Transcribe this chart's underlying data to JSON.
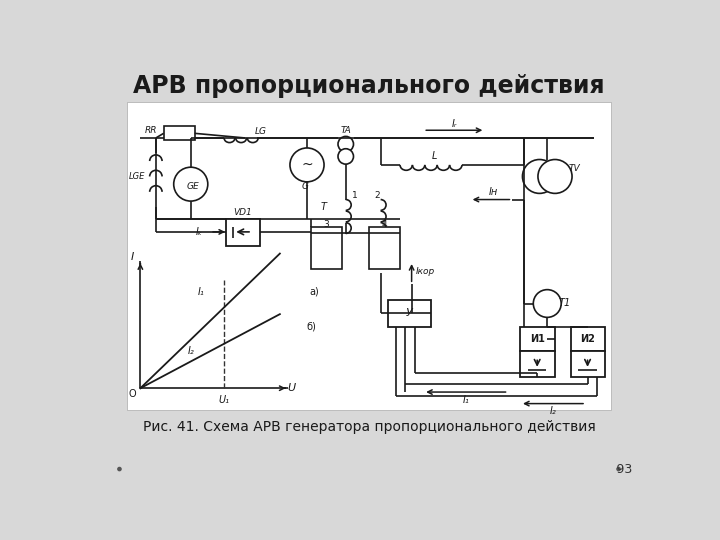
{
  "title": "АРВ пропорционального действия",
  "caption": "Рис. 41. Схема АРВ генератора пропорционального действия",
  "slide_number": "93",
  "bg_color": "#d8d8d8",
  "content_bg": "#ffffff",
  "title_color": "#1a1a1a",
  "caption_color": "#1a1a1a",
  "diagram_color": "#1a1a1a"
}
